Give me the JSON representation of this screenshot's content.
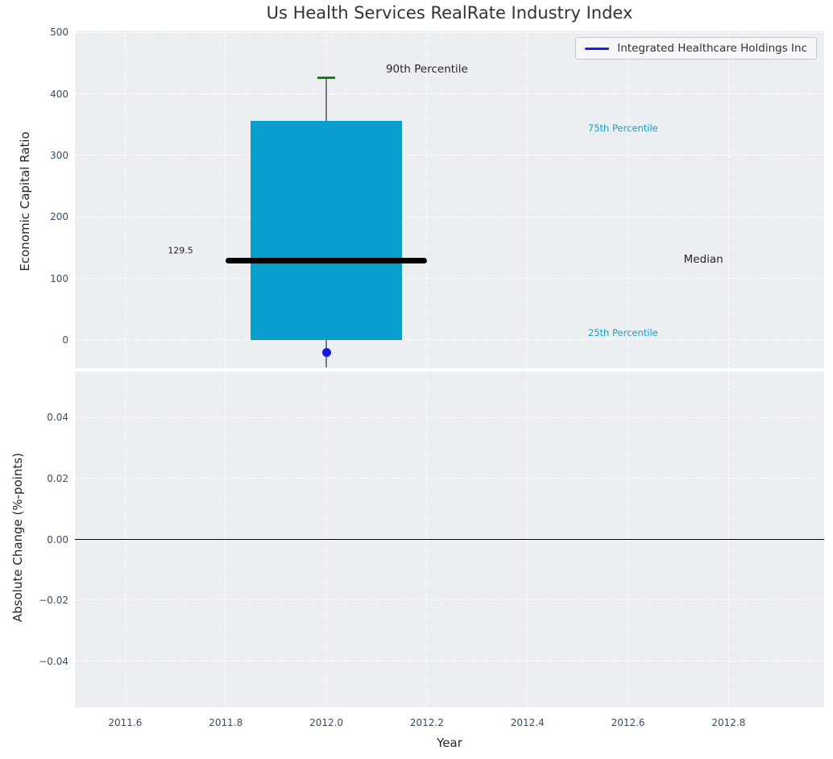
{
  "figure": {
    "title": "Us Health Services RealRate Industry Index"
  },
  "legend": {
    "label": "Integrated Healthcare Holdings Inc",
    "line_color": "#1a1aff"
  },
  "colors": {
    "plot_bg": "#eceff1",
    "grid": "#ffffff",
    "tick_label": "#3b4c63",
    "title": "#323232",
    "box_fill": "#089fce",
    "median_line": "#000000",
    "whisker": "#7a7a7a",
    "cap_90th_percentile": "#128012",
    "company_dot": "#1717dd",
    "accent_text": "#189ccc",
    "zero_line": "#000000"
  },
  "chart_data": [
    {
      "type": "boxplot",
      "title": "Us Health Services RealRate Industry Index",
      "ylabel": "Economic Capital Ratio",
      "xlabel": "",
      "grid": true,
      "legend_position": "upper right",
      "ylim": [
        -46,
        503
      ],
      "xlim": [
        2011.5,
        2012.99
      ],
      "yticks": [
        {
          "label": "0",
          "value": 0
        },
        {
          "label": "100",
          "value": 100
        },
        {
          "label": "200",
          "value": 200
        },
        {
          "label": "300",
          "value": 300
        },
        {
          "label": "400",
          "value": 400
        },
        {
          "label": "500",
          "value": 500
        }
      ],
      "xticks": [
        {
          "label": "2011.6",
          "value": 2011.6
        },
        {
          "label": "2011.8",
          "value": 2011.8
        },
        {
          "label": "2012.0",
          "value": 2012.0
        },
        {
          "label": "2012.2",
          "value": 2012.2
        },
        {
          "label": "2012.4",
          "value": 2012.4
        },
        {
          "label": "2012.6",
          "value": 2012.6
        },
        {
          "label": "2012.8",
          "value": 2012.8
        }
      ],
      "box": {
        "x": 2012.0,
        "percentile_25": 0,
        "median": 129.5,
        "percentile_75": 356,
        "percentile_90": 427,
        "whisker_low_clip": -46,
        "box_halfwidth_years": 0.15,
        "median_halfwidth_years": 0.2,
        "cap_halfwidth_years": 0.018
      },
      "company_point": {
        "series": "Integrated Healthcare Holdings Inc",
        "x": 2012.0,
        "y": -20
      },
      "annotations": [
        {
          "text": "90th Percentile",
          "x": 2012.2,
          "y": 440,
          "style": "dark",
          "size": "md"
        },
        {
          "text": "75th Percentile",
          "x": 2012.59,
          "y": 345,
          "style": "accent",
          "size": "sm"
        },
        {
          "text": "Median",
          "x": 2012.75,
          "y": 131,
          "style": "dark",
          "size": "md"
        },
        {
          "text": "25th Percentile",
          "x": 2012.59,
          "y": 12,
          "style": "accent",
          "size": "sm"
        },
        {
          "text": "129.5",
          "x": 2011.71,
          "y": 145,
          "style": "dark",
          "size": "xs"
        }
      ]
    },
    {
      "type": "line",
      "title": "",
      "ylabel": "Absolute Change (%-points)",
      "xlabel": "Year",
      "grid": true,
      "ylim": [
        -0.0552,
        0.0552
      ],
      "xlim": [
        2011.5,
        2012.99
      ],
      "yticks": [
        {
          "label": "0.04",
          "value": 0.04
        },
        {
          "label": "0.02",
          "value": 0.02
        },
        {
          "label": "0.00",
          "value": 0
        },
        {
          "label": "−0.02",
          "value": -0.02
        },
        {
          "label": "−0.04",
          "value": -0.04
        }
      ],
      "xticks": [
        {
          "label": "2011.6",
          "value": 2011.6
        },
        {
          "label": "2011.8",
          "value": 2011.8
        },
        {
          "label": "2012.0",
          "value": 2012.0
        },
        {
          "label": "2012.2",
          "value": 2012.2
        },
        {
          "label": "2012.4",
          "value": 2012.4
        },
        {
          "label": "2012.6",
          "value": 2012.6
        },
        {
          "label": "2012.8",
          "value": 2012.8
        }
      ],
      "zero_line": 0,
      "series": []
    }
  ]
}
